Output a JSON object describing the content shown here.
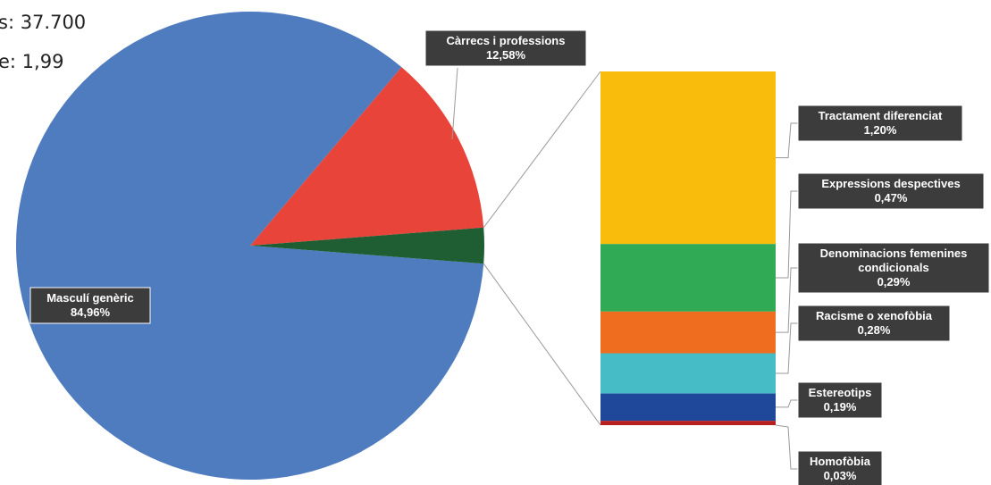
{
  "header": {
    "line1": "s: 37.700",
    "line2": "e: 1,99"
  },
  "chart_data": {
    "type": "bar-of-pie",
    "pie": {
      "slices": [
        {
          "name": "Masculí genèric",
          "label": "84,96%",
          "value": 84.96,
          "color": "#4f7bbf"
        },
        {
          "name": "Càrrecs i professions",
          "label": "12,58%",
          "value": 12.58,
          "color": "#e8443a"
        },
        {
          "name": "",
          "label": "",
          "value": 2.46,
          "color": "#1f5e32"
        }
      ]
    },
    "bar": {
      "segments": [
        {
          "name": "Tractament diferenciat",
          "label": "1,20%",
          "value": 1.2,
          "color": "#f9bb0c"
        },
        {
          "name": "Expressions despectives",
          "label": "0,47%",
          "value": 0.47,
          "color": "#30aa55"
        },
        {
          "name": "Denominacions femenines condicionals",
          "label": "0,29%",
          "value": 0.29,
          "color": "#ee6d1f"
        },
        {
          "name": "Racisme o xenofòbia",
          "label": "0,28%",
          "value": 0.28,
          "color": "#46bcc6"
        },
        {
          "name": "Estereotips",
          "label": "0,19%",
          "value": 0.19,
          "color": "#20489a"
        },
        {
          "name": "Homofòbia",
          "label": "0,03%",
          "value": 0.03,
          "color": "#b82020"
        }
      ]
    }
  }
}
